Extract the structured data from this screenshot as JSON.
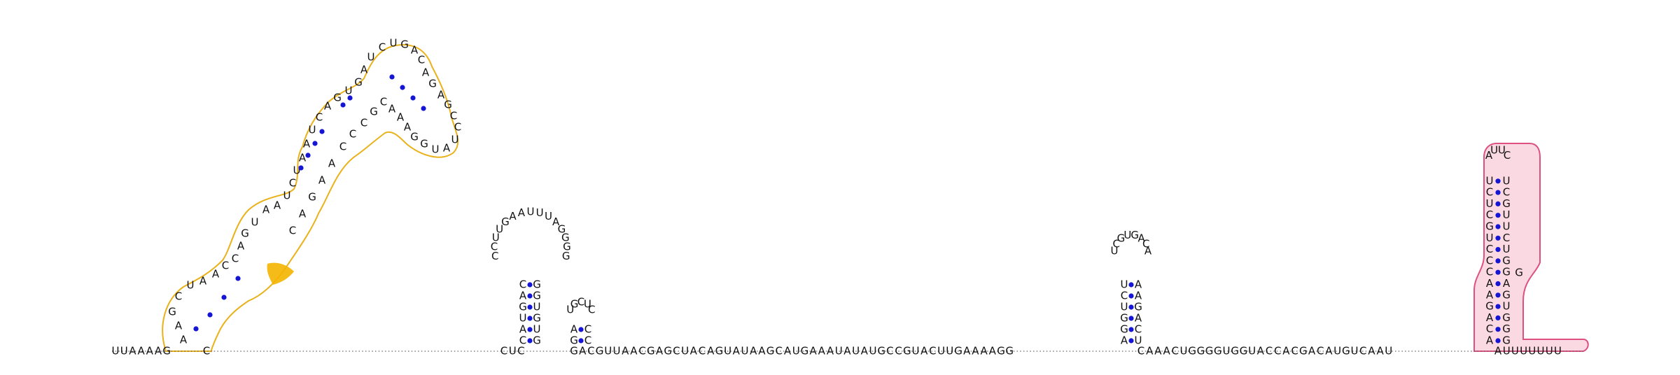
{
  "colors": {
    "background": "#ffffff",
    "nucleotide_text": "#111111",
    "backbone": "#666666",
    "base_pair_dot": "#1515d6",
    "highlight_outline_orange": "#e9b21b",
    "highlight_fill_orange": "#f4b400",
    "highlight_outline_pink": "#d6336c",
    "highlight_fill_pink": "#fbd3df"
  },
  "baseline": {
    "left_sequence": "UUAAAAG",
    "gap_before_stem1": "C",
    "middle_left": "CUC",
    "middle_run": "GACGUUAACGAGCUACAGUAUAAGCAUGAAAUAUAUGCCGUACUUGAAAAGG",
    "middle_run2": "CAAACUGGGGUGGUACCACGACAUGUCAAU",
    "tail": "AUUUUUUU"
  },
  "hairpins": {
    "h1": {
      "stem_5p": "CAGUAC",
      "loop": "CCUUGAAUUUAGGGG",
      "stem_3p": "GGUGUG"
    },
    "h2": {
      "stem_5p": "AG",
      "loop": "UGCUC",
      "stem_3p": "CC"
    },
    "h3": {
      "stem_5p": "UCUGGA",
      "loop": "UCGUGACA",
      "stem_3p": "AAGACU"
    },
    "h4": {
      "stem_5p": "UCUCGUCCCAAGACA",
      "loop": "AUUC",
      "stem_3p": "UCGUUCUGGAGUGGGG"
    }
  },
  "complex_domain": {
    "label_sequence": "AAGCUAACCAGUAAUCUAAUCAGUGAUCUGACAGAGCCUAUGGAAACGCCCAAGAC"
  }
}
